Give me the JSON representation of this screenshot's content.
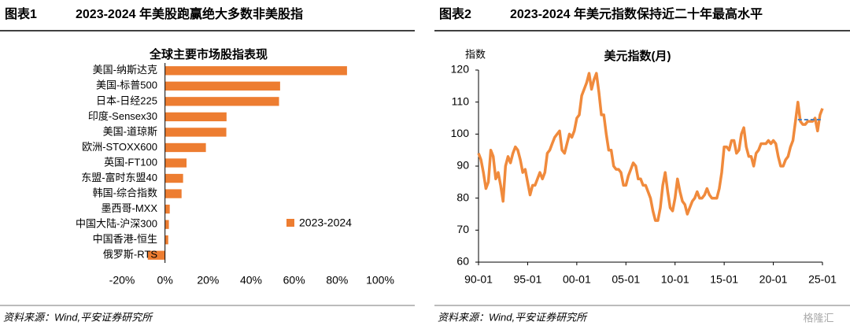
{
  "chart_data": [
    {
      "type": "barh",
      "figure_label": "图表1",
      "figure_title": "2023-2024 年美股跑赢绝大多数非美股指",
      "title": "全球主要市场股指表现",
      "categories": [
        "美国-纳斯达克",
        "美国-标普500",
        "日本-日经225",
        "印度-Sensex30",
        "美国-道琼斯",
        "欧洲-STOXX600",
        "英国-FT100",
        "东盟-富时东盟40",
        "韩国-综合指数",
        "墨西哥-MXX",
        "中国大陆-沪深300",
        "中国香港-恒生",
        "俄罗斯-RTS"
      ],
      "series": [
        {
          "name": "2023-2024",
          "color": "#ed7d31",
          "values": [
            84.6,
            53.5,
            53,
            28.6,
            28.5,
            19,
            10,
            8.4,
            7.7,
            2.2,
            1.8,
            1.5,
            -8
          ]
        }
      ],
      "xlim": [
        -20,
        100
      ],
      "xticks": [
        {
          "value": -20,
          "label": "-20%"
        },
        {
          "value": 0,
          "label": "0%"
        },
        {
          "value": 20,
          "label": "20%"
        },
        {
          "value": 40,
          "label": "40%"
        },
        {
          "value": 60,
          "label": "60%"
        },
        {
          "value": 80,
          "label": "80%"
        },
        {
          "value": 100,
          "label": "100%"
        }
      ],
      "legend": "lower right",
      "source": "资料来源：Wind,平安证券研究所"
    },
    {
      "type": "line",
      "figure_label": "图表2",
      "figure_title": "2023-2024 年美元指数保持近二十年最高水平",
      "title": "美元指数(月)",
      "ylabel": "指数",
      "x": [
        "90-01",
        "90-04",
        "90-07",
        "90-10",
        "91-01",
        "91-04",
        "91-07",
        "91-10",
        "92-01",
        "92-04",
        "92-07",
        "92-10",
        "93-01",
        "93-04",
        "93-07",
        "93-10",
        "94-01",
        "94-04",
        "94-07",
        "94-10",
        "95-01",
        "95-04",
        "95-07",
        "95-10",
        "96-01",
        "96-04",
        "96-07",
        "96-10",
        "97-01",
        "97-04",
        "97-07",
        "97-10",
        "98-01",
        "98-04",
        "98-07",
        "98-10",
        "99-01",
        "99-04",
        "99-07",
        "99-10",
        "00-01",
        "00-04",
        "00-07",
        "00-10",
        "01-01",
        "01-04",
        "01-07",
        "01-10",
        "02-01",
        "02-04",
        "02-07",
        "02-10",
        "03-01",
        "03-04",
        "03-07",
        "03-10",
        "04-01",
        "04-04",
        "04-07",
        "04-10",
        "05-01",
        "05-04",
        "05-07",
        "05-10",
        "06-01",
        "06-04",
        "06-07",
        "06-10",
        "07-01",
        "07-04",
        "07-07",
        "07-10",
        "08-01",
        "08-04",
        "08-07",
        "08-10",
        "09-01",
        "09-04",
        "09-07",
        "09-10",
        "10-01",
        "10-04",
        "10-07",
        "10-10",
        "11-01",
        "11-04",
        "11-07",
        "11-10",
        "12-01",
        "12-04",
        "12-07",
        "12-10",
        "13-01",
        "13-04",
        "13-07",
        "13-10",
        "14-01",
        "14-04",
        "14-07",
        "14-10",
        "15-01",
        "15-04",
        "15-07",
        "15-10",
        "16-01",
        "16-04",
        "16-07",
        "16-10",
        "17-01",
        "17-04",
        "17-07",
        "17-10",
        "18-01",
        "18-04",
        "18-07",
        "18-10",
        "19-01",
        "19-04",
        "19-07",
        "19-10",
        "20-01",
        "20-04",
        "20-07",
        "20-10",
        "21-01",
        "21-04",
        "21-07",
        "21-10",
        "22-01",
        "22-04",
        "22-07",
        "22-10",
        "23-01",
        "23-04",
        "23-07",
        "23-10",
        "24-01",
        "24-04",
        "24-07",
        "24-10",
        "25-01"
      ],
      "series": [
        {
          "name": "美元指数",
          "color": "#f08a3c",
          "values": [
            94,
            92,
            88,
            83,
            85,
            95,
            93,
            86,
            88,
            84,
            79,
            90,
            93,
            91,
            94,
            96,
            95,
            92,
            88,
            89,
            85,
            81,
            84,
            84,
            86,
            88,
            86,
            88,
            94,
            95,
            97,
            99,
            100,
            101,
            95,
            94,
            97,
            100,
            99,
            101,
            105,
            106,
            112,
            114,
            116,
            119,
            114,
            117,
            119,
            113,
            106,
            106,
            100,
            95,
            95,
            90,
            89,
            89,
            88,
            84,
            84,
            87,
            89,
            91,
            90,
            86,
            86,
            84,
            84,
            82,
            80,
            76,
            73,
            73,
            77,
            84,
            88,
            82,
            77,
            76,
            80,
            86,
            82,
            79,
            78,
            75,
            77,
            79,
            80,
            82,
            80,
            80,
            81,
            83,
            81,
            80,
            80,
            80,
            83,
            88,
            96,
            96,
            95,
            98,
            98,
            94,
            95,
            100,
            102,
            96,
            93,
            93,
            90,
            94,
            95,
            97,
            97,
            97,
            98,
            97,
            98,
            97,
            93,
            90,
            90,
            92,
            93,
            96,
            98,
            104,
            110,
            104,
            103,
            103,
            104,
            104,
            104,
            105,
            101,
            106,
            108
          ]
        }
      ],
      "reference_line": {
        "value": 104.5,
        "from": "22-07",
        "to": "25-01",
        "color": "#4a7ebb"
      },
      "ylim": [
        60,
        120
      ],
      "yticks": [
        60,
        70,
        80,
        90,
        100,
        110,
        120
      ],
      "xticks": [
        "90-01",
        "95-01",
        "00-01",
        "05-01",
        "10-01",
        "15-01",
        "20-01",
        "25-01"
      ],
      "source": "资料来源：Wind,平安证券研究所"
    }
  ],
  "watermark": "格隆汇"
}
